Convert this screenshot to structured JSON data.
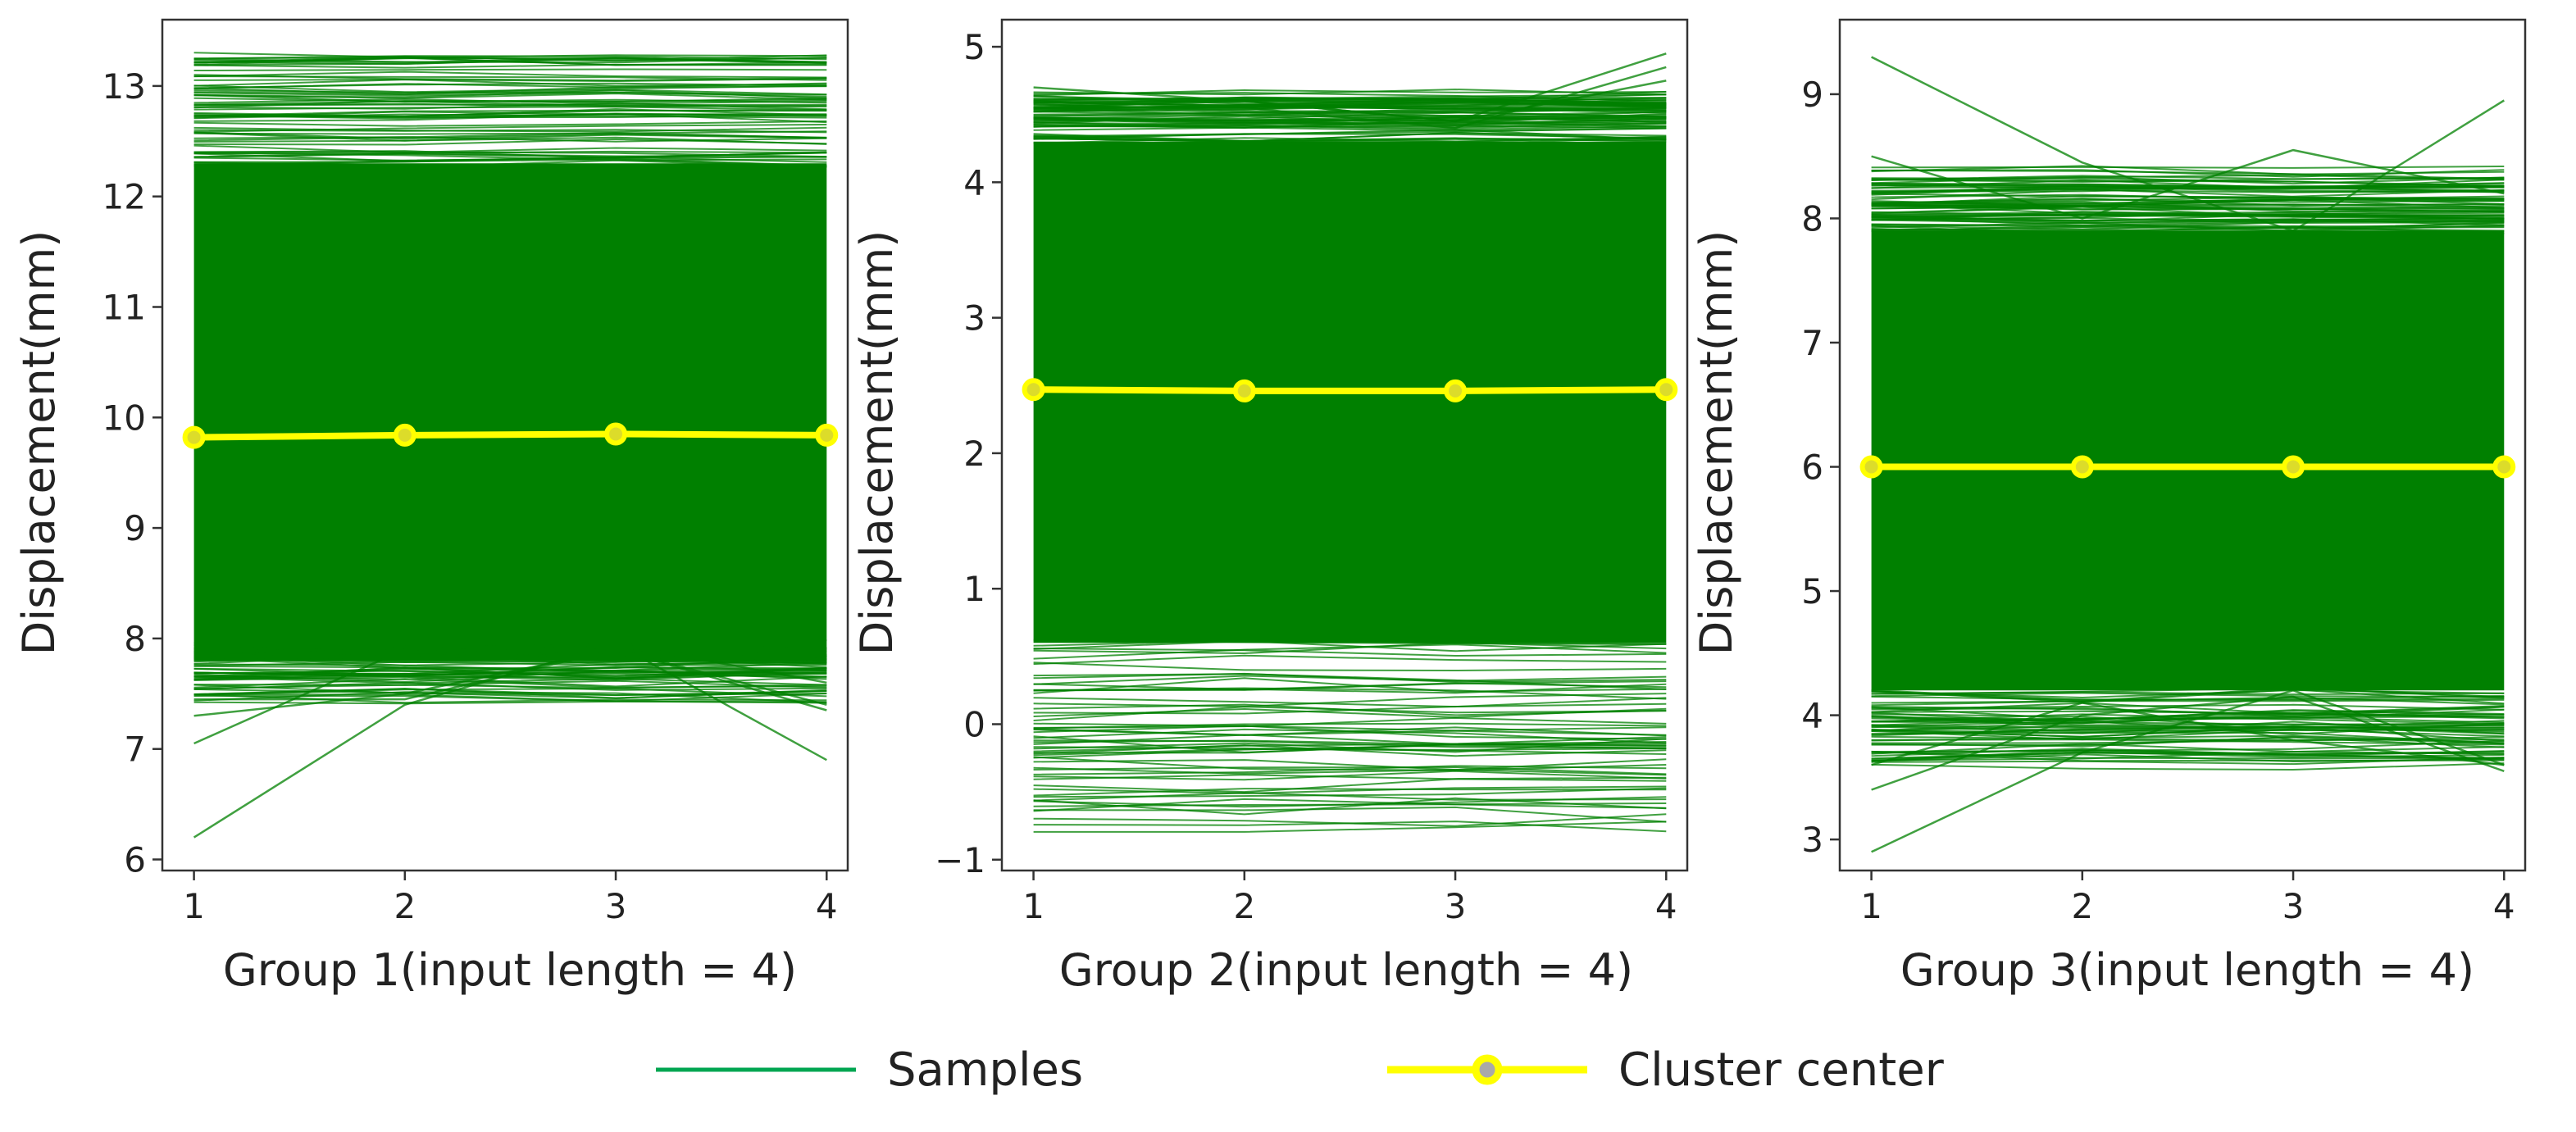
{
  "chart_data": [
    {
      "type": "line",
      "xlabel": "Group 1(input length = 4)",
      "ylabel": "Displacement(mm)",
      "x": [
        1,
        2,
        3,
        4
      ],
      "xticks": [
        "1",
        "2",
        "3",
        "4"
      ],
      "xlim": [
        0.85,
        4.1
      ],
      "ylim": [
        5.9,
        13.6
      ],
      "yticks": [
        6,
        7,
        8,
        9,
        10,
        11,
        12,
        13
      ],
      "samples": {
        "band_low": 7.8,
        "band_high": 12.3,
        "upper_min": 12.3,
        "upper_max": 13.28,
        "lower_min": 7.45,
        "lower_max": 7.95,
        "outliers": [
          [
            6.2,
            7.4,
            7.95,
            7.6
          ],
          [
            7.05,
            7.9,
            7.95,
            6.9
          ],
          [
            7.3,
            7.5,
            7.9,
            7.4
          ],
          [
            7.45,
            7.45,
            7.9,
            7.35
          ]
        ]
      },
      "cluster_center": [
        9.82,
        9.84,
        9.85,
        9.84
      ]
    },
    {
      "type": "line",
      "xlabel": "Group 2(input length = 4)",
      "ylabel": "Displacement(mm)",
      "x": [
        1,
        2,
        3,
        4
      ],
      "xticks": [
        "1",
        "2",
        "3",
        "4"
      ],
      "xlim": [
        0.85,
        4.1
      ],
      "ylim": [
        -1.08,
        5.2
      ],
      "yticks": [
        -1,
        0,
        1,
        2,
        3,
        4,
        5
      ],
      "samples": {
        "band_low": 0.6,
        "band_high": 4.3,
        "upper_min": 4.3,
        "upper_max": 4.65,
        "lower_min": -0.78,
        "lower_max": 0.6,
        "outliers": [
          [
            4.7,
            4.6,
            4.45,
            4.95
          ],
          [
            4.6,
            4.55,
            4.4,
            4.85
          ],
          [
            4.55,
            4.6,
            4.45,
            4.75
          ]
        ]
      },
      "cluster_center": [
        2.47,
        2.46,
        2.46,
        2.47
      ]
    },
    {
      "type": "line",
      "xlabel": "Group 3(input length = 4)",
      "ylabel": "Displacement(mm)",
      "x": [
        1,
        2,
        3,
        4
      ],
      "xticks": [
        "1",
        "2",
        "3",
        "4"
      ],
      "xlim": [
        0.85,
        4.1
      ],
      "ylim": [
        2.75,
        9.6
      ],
      "yticks": [
        3,
        4,
        5,
        6,
        7,
        8,
        9
      ],
      "samples": {
        "band_low": 4.2,
        "band_high": 7.9,
        "upper_min": 7.9,
        "upper_max": 8.4,
        "lower_min": 3.6,
        "lower_max": 4.2,
        "outliers": [
          [
            9.3,
            8.45,
            7.9,
            8.95
          ],
          [
            2.9,
            3.7,
            4.2,
            3.6
          ],
          [
            8.5,
            8.0,
            8.55,
            8.2
          ],
          [
            3.4,
            4.0,
            4.15,
            3.55
          ],
          [
            3.6,
            4.1,
            3.8,
            3.6
          ]
        ]
      },
      "cluster_center": [
        6.0,
        6.0,
        6.0,
        6.0
      ]
    }
  ],
  "legend": {
    "samples_label": "Samples",
    "cluster_label": "Cluster center"
  },
  "colors": {
    "samples": "#008000",
    "samples_legend": "#00A651",
    "cluster_line": "#FFFF00",
    "cluster_marker_fill": "#DCDC2A",
    "cluster_legend_marker": "#A9A9A9"
  }
}
